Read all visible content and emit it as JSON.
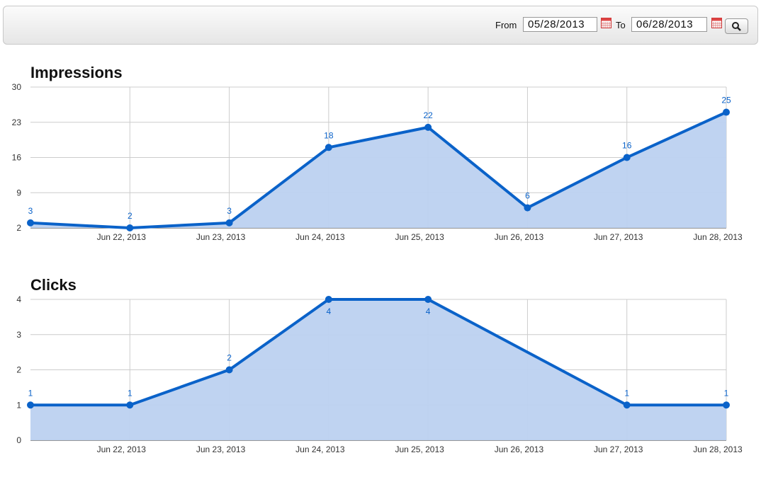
{
  "toolbar": {
    "from_label": "From",
    "from_date": "05/28/2013",
    "to_label": "To",
    "to_date": "06/28/2013"
  },
  "chart_data": [
    {
      "type": "area",
      "title": "Impressions",
      "x": [
        "2013-06-21",
        "2013-06-22",
        "2013-06-23",
        "2013-06-24",
        "2013-06-25",
        "2013-06-26",
        "2013-06-27",
        "2013-06-28"
      ],
      "values": [
        3,
        2,
        3,
        18,
        22,
        6,
        16,
        25
      ],
      "color": "#0a62c9",
      "area_color": "#bcd1f0",
      "xlim": [
        "2013-06-21",
        "2013-06-28"
      ],
      "xticks": [
        {
          "value": "2013-06-22",
          "label": "Jun 22, 2013"
        },
        {
          "value": "2013-06-23",
          "label": "Jun 23, 2013"
        },
        {
          "value": "2013-06-24",
          "label": "Jun 24, 2013"
        },
        {
          "value": "2013-06-25",
          "label": "Jun 25, 2013"
        },
        {
          "value": "2013-06-26",
          "label": "Jun 26, 2013"
        },
        {
          "value": "2013-06-27",
          "label": "Jun 27, 2013"
        },
        {
          "value": "2013-06-28",
          "label": "Jun 28, 2013"
        }
      ],
      "ylim": [
        2,
        30
      ],
      "yticks": [
        2,
        9,
        16,
        23,
        30
      ],
      "grid": true
    },
    {
      "type": "area",
      "title": "Clicks",
      "x": [
        "2013-06-21",
        "2013-06-22",
        "2013-06-23",
        "2013-06-24",
        "2013-06-25",
        "2013-06-27",
        "2013-06-28"
      ],
      "values": [
        1,
        1,
        2,
        4,
        4,
        1,
        1
      ],
      "color": "#0a62c9",
      "area_color": "#bcd1f0",
      "xlim": [
        "2013-06-21",
        "2013-06-28"
      ],
      "xticks": [
        {
          "value": "2013-06-22",
          "label": "Jun 22, 2013"
        },
        {
          "value": "2013-06-23",
          "label": "Jun 23, 2013"
        },
        {
          "value": "2013-06-24",
          "label": "Jun 24, 2013"
        },
        {
          "value": "2013-06-25",
          "label": "Jun 25, 2013"
        },
        {
          "value": "2013-06-26",
          "label": "Jun 26, 2013"
        },
        {
          "value": "2013-06-27",
          "label": "Jun 27, 2013"
        },
        {
          "value": "2013-06-28",
          "label": "Jun 28, 2013"
        }
      ],
      "ylim": [
        0,
        4
      ],
      "yticks": [
        0,
        1,
        2,
        3,
        4
      ],
      "grid": true
    }
  ]
}
